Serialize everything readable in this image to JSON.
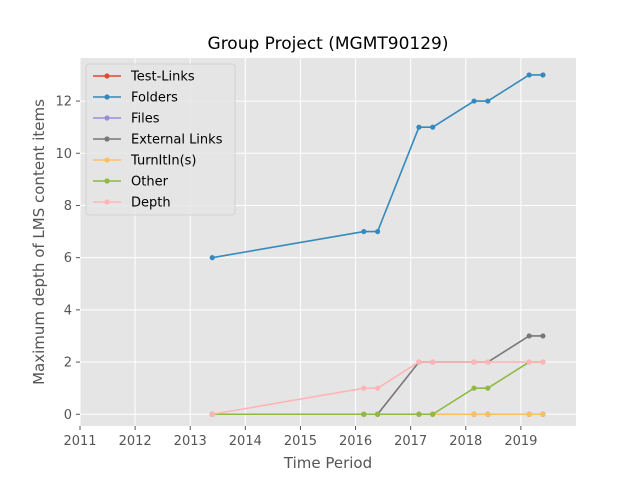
{
  "chart_data": {
    "type": "line",
    "title": "Group Project (MGMT90129)",
    "xlabel": "Time Period",
    "ylabel": "Maximum depth of LMS content items",
    "xlim": [
      2011,
      2020
    ],
    "ylim": [
      -0.45,
      13.65
    ],
    "x_ticks": [
      2011,
      2012,
      2013,
      2014,
      2015,
      2016,
      2017,
      2018,
      2019
    ],
    "y_ticks": [
      0,
      2,
      4,
      6,
      8,
      10,
      12
    ],
    "grid": true,
    "legend_position": "top-left",
    "x": [
      2013.4,
      2016.15,
      2016.4,
      2017.15,
      2017.4,
      2018.15,
      2018.4,
      2019.15,
      2019.4
    ],
    "series": [
      {
        "name": "Test-Links",
        "color": "#E24A33",
        "values": [
          0,
          0,
          0,
          0,
          0,
          0,
          0,
          0,
          0
        ]
      },
      {
        "name": "Folders",
        "color": "#348ABD",
        "values": [
          6,
          7,
          7,
          11,
          11,
          12,
          12,
          13,
          13
        ]
      },
      {
        "name": "Files",
        "color": "#988ED5",
        "values": [
          0,
          0,
          0,
          0,
          0,
          0,
          0,
          0,
          0
        ]
      },
      {
        "name": "External Links",
        "color": "#777777",
        "values": [
          0,
          0,
          0,
          2,
          2,
          2,
          2,
          3,
          3
        ]
      },
      {
        "name": "TurnItIn(s)",
        "color": "#FBC15E",
        "values": [
          0,
          0,
          0,
          0,
          0,
          0,
          0,
          0,
          0
        ]
      },
      {
        "name": "Other",
        "color": "#8EBA42",
        "values": [
          0,
          0,
          0,
          0,
          0,
          1,
          1,
          2,
          2
        ]
      },
      {
        "name": "Depth",
        "color": "#FFB5B8",
        "values": [
          0,
          1,
          1,
          2,
          2,
          2,
          2,
          2,
          2
        ]
      }
    ]
  }
}
